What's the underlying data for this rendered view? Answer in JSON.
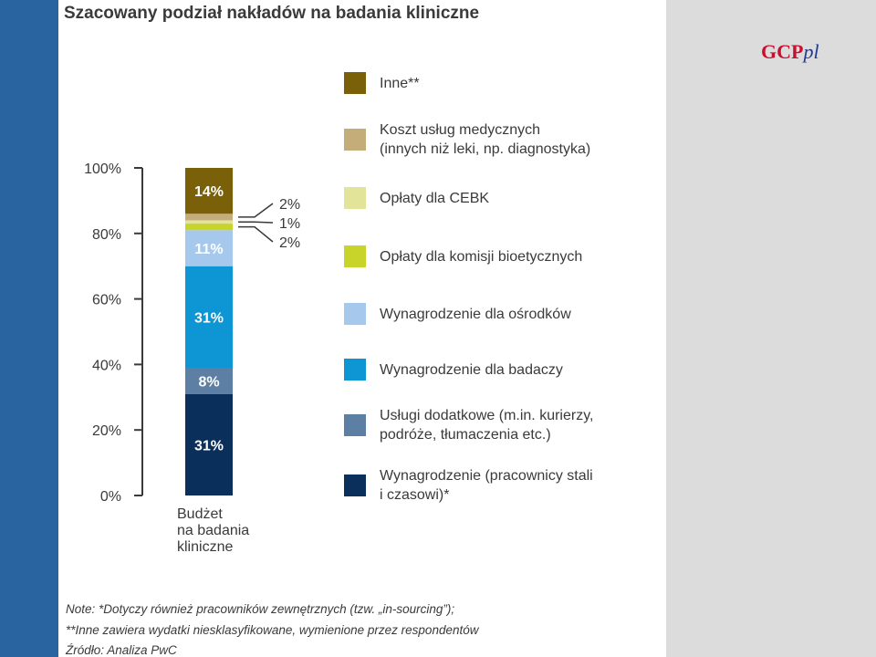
{
  "title": "Szacowany podział nakładów na badania kliniczne",
  "logo": {
    "strong": "GCP",
    "em": "pl"
  },
  "colors": {
    "side_band": "#2a64a0",
    "panel": "#dcdcdc"
  },
  "chart_data": {
    "type": "bar",
    "stacked": true,
    "categories": [
      "Budżet na badania kliniczne"
    ],
    "category_label_lines": [
      "Budżet",
      "na badania",
      "kliniczne"
    ],
    "ylim": [
      0,
      100
    ],
    "yticks": [
      0,
      20,
      40,
      60,
      80,
      100
    ],
    "ytick_labels": [
      "0%",
      "20%",
      "40%",
      "60%",
      "80%",
      "100%"
    ],
    "series": [
      {
        "name": "Wynagrodzenie (pracownicy stali i czasowi)*",
        "legend_lines": [
          "Wynagrodzenie (pracownicy stali",
          "i czasowi)*"
        ],
        "value": 31,
        "label": "31%",
        "color": "#0b2f5b"
      },
      {
        "name": "Usługi dodatkowe (m.in. kurierzy, podróże, tłumaczenia etc.)",
        "legend_lines": [
          "Usługi dodatkowe (m.in. kurierzy,",
          "podróże, tłumaczenia etc.)"
        ],
        "value": 8,
        "label": "8%",
        "color": "#5c7fa3"
      },
      {
        "name": "Wynagrodzenie dla badaczy",
        "legend_lines": [
          "Wynagrodzenie dla badaczy"
        ],
        "value": 31,
        "label": "31%",
        "color": "#0e95d4"
      },
      {
        "name": "Wynagrodzenie dla ośrodków",
        "legend_lines": [
          "Wynagrodzenie dla ośrodków"
        ],
        "value": 11,
        "label": "11%",
        "color": "#a6c8ec"
      },
      {
        "name": "Opłaty dla komisji bioetycznych",
        "legend_lines": [
          "Opłaty dla komisji bioetycznych"
        ],
        "value": 2,
        "label": "2%",
        "color": "#c8d42a"
      },
      {
        "name": "Opłaty dla CEBK",
        "legend_lines": [
          "Opłaty dla CEBK"
        ],
        "value": 1,
        "label": "1%",
        "color": "#e2e49a"
      },
      {
        "name": "Koszt usług medycznych (innych niż leki, np. diagnostyka)",
        "legend_lines": [
          "Koszt usług medycznych",
          "(innych niż leki, np. diagnostyka)"
        ],
        "value": 2,
        "label": "2%",
        "color": "#c4ad78"
      },
      {
        "name": "Inne**",
        "legend_lines": [
          "Inne**"
        ],
        "value": 14,
        "label": "14%",
        "color": "#7a6008"
      }
    ]
  },
  "notes": [
    "Note: *Dotyczy również pracowników zewnętrznych (tzw. „in-sourcing”);",
    "**Inne zawiera wydatki niesklasyfikowane, wymienione przez respondentów",
    "Źródło: Analiza PwC"
  ]
}
